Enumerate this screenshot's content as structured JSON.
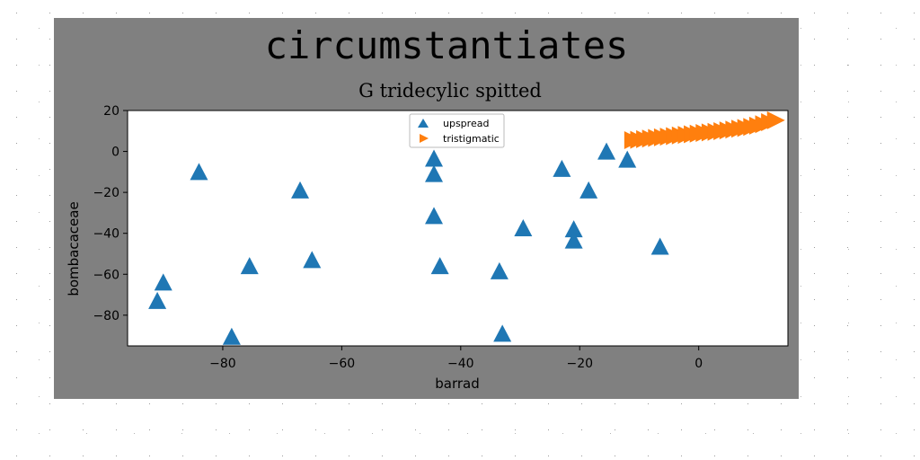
{
  "chart_data": {
    "type": "scatter",
    "title": "circumstantiates",
    "subtitle": "G tridecylic spitted",
    "xlabel": "barrad",
    "ylabel": "bombacaceae",
    "xlim": [
      -96,
      15
    ],
    "ylim": [
      -95,
      20
    ],
    "xticks": [
      -80,
      -60,
      -40,
      -20,
      0
    ],
    "yticks": [
      -80,
      -60,
      -40,
      -20,
      0,
      20
    ],
    "grid": false,
    "legend_position": "top-center",
    "series": [
      {
        "name": "upspread",
        "marker": "triangle-up",
        "color": "#1f77b4",
        "points": [
          [
            -84,
            -10
          ],
          [
            -67,
            -19
          ],
          [
            -75.5,
            -56
          ],
          [
            -65,
            -53
          ],
          [
            -90,
            -64
          ],
          [
            -91,
            -73
          ],
          [
            -78.5,
            -90.5
          ],
          [
            -44.5,
            -3.5
          ],
          [
            -44.5,
            -11
          ],
          [
            -44.5,
            -31.5
          ],
          [
            -43.5,
            -56
          ],
          [
            -33.5,
            -58.5
          ],
          [
            -33,
            -89
          ],
          [
            -29.5,
            -37.5
          ],
          [
            -23,
            -8.5
          ],
          [
            -21,
            -38
          ],
          [
            -21,
            -43.5
          ],
          [
            -18.5,
            -19
          ],
          [
            -15.5,
            0
          ],
          [
            -12,
            -4
          ],
          [
            -6.5,
            -46.5
          ]
        ]
      },
      {
        "name": "tristigmatic",
        "marker": "triangle-right",
        "color": "#ff7f0e",
        "points": [
          [
            -11,
            5.5
          ],
          [
            -10,
            5.7
          ],
          [
            -9,
            6.0
          ],
          [
            -8,
            6.3
          ],
          [
            -7,
            6.6
          ],
          [
            -6,
            6.9
          ],
          [
            -5,
            7.2
          ],
          [
            -4,
            7.5
          ],
          [
            -3,
            7.8
          ],
          [
            -2,
            8.1
          ],
          [
            -1,
            8.4
          ],
          [
            0,
            8.7
          ],
          [
            1,
            9.0
          ],
          [
            2,
            9.3
          ],
          [
            3,
            9.6
          ],
          [
            4,
            9.9
          ],
          [
            5,
            10.3
          ],
          [
            6,
            10.7
          ],
          [
            7,
            11.1
          ],
          [
            8,
            11.5
          ],
          [
            9,
            12.0
          ],
          [
            10,
            12.6
          ],
          [
            11,
            13.3
          ],
          [
            12,
            14.3
          ],
          [
            13,
            15.2
          ]
        ]
      }
    ]
  }
}
